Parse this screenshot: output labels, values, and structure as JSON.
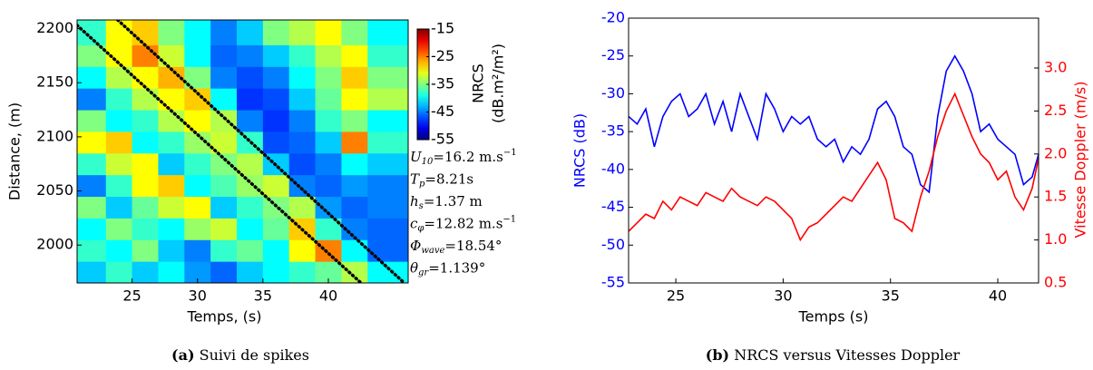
{
  "chart_data": [
    {
      "type": "heatmap",
      "xlabel": "Temps, (s)",
      "ylabel": "Distance, (m)",
      "xlim": [
        20.8,
        46.1
      ],
      "ylim": [
        1965,
        2208
      ],
      "xticks": [
        25,
        30,
        35,
        40
      ],
      "yticks": [
        2000,
        2050,
        2100,
        2150,
        2200
      ],
      "xbins": [
        20.8,
        23,
        25,
        27,
        29,
        31,
        33,
        35,
        37,
        39,
        41,
        43,
        46.1
      ],
      "ybins": [
        1965,
        1985,
        2005,
        2025,
        2045,
        2065,
        2085,
        2105,
        2125,
        2145,
        2165,
        2185,
        2208
      ],
      "z": [
        [
          -42,
          -38,
          -42,
          -40,
          -44,
          -46,
          -42,
          -40,
          -38,
          -36,
          -33,
          -40
        ],
        [
          -38,
          -40,
          -35,
          -42,
          -45,
          -38,
          -36,
          -40,
          -30,
          -25,
          -40,
          -46
        ],
        [
          -40,
          -35,
          -38,
          -40,
          -34,
          -32,
          -40,
          -36,
          -28,
          -38,
          -45,
          -46
        ],
        [
          -35,
          -42,
          -36,
          -32,
          -30,
          -42,
          -38,
          -35,
          -33,
          -44,
          -46,
          -45
        ],
        [
          -45,
          -38,
          -30,
          -28,
          -40,
          -37,
          -34,
          -32,
          -45,
          -46,
          -44,
          -45
        ],
        [
          -38,
          -32,
          -30,
          -42,
          -38,
          -35,
          -33,
          -42,
          -47,
          -45,
          -40,
          -42
        ],
        [
          -30,
          -28,
          -40,
          -38,
          -34,
          -32,
          -38,
          -47,
          -46,
          -42,
          -25,
          -38
        ],
        [
          -35,
          -40,
          -38,
          -33,
          -30,
          -33,
          -45,
          -48,
          -45,
          -38,
          -35,
          -40
        ],
        [
          -45,
          -38,
          -33,
          -30,
          -28,
          -40,
          -48,
          -47,
          -42,
          -36,
          -30,
          -33
        ],
        [
          -40,
          -33,
          -30,
          -27,
          -35,
          -45,
          -47,
          -45,
          -40,
          -35,
          -28,
          -35
        ],
        [
          -35,
          -30,
          -25,
          -32,
          -40,
          -46,
          -45,
          -42,
          -38,
          -33,
          -30,
          -38
        ],
        [
          -38,
          -30,
          -28,
          -35,
          -40,
          -45,
          -42,
          -35,
          -33,
          -30,
          -35,
          -40
        ]
      ],
      "cmap": "jet",
      "clim": [
        -55,
        -15
      ],
      "colorbar_ticks": [
        -15,
        -25,
        -35,
        -45,
        -55
      ],
      "colorbar_label": [
        "NRCS",
        "(dB.m²/m²)"
      ],
      "lines": [
        {
          "x": [
            20.8,
            42.5
          ],
          "y": [
            2203,
            1965
          ],
          "color": "#000000"
        },
        {
          "x": [
            23.9,
            45.8
          ],
          "y": [
            2208,
            1965
          ],
          "color": "#000000"
        }
      ],
      "annotations": [
        {
          "symbol": "U",
          "sub": "10",
          "text": "=16.2 m.s",
          "sup": "−1"
        },
        {
          "symbol": "T",
          "sub": "p",
          "text": "=8.21s"
        },
        {
          "symbol": "h",
          "sub": "s",
          "text": "=1.37 m"
        },
        {
          "symbol": "c",
          "sub": "φ",
          "text": "=12.82 m.s",
          "sup": "−1"
        },
        {
          "symbol": "Φ",
          "sub": "wave",
          "text": "=18.54°"
        },
        {
          "symbol": "θ",
          "sub": "gr",
          "text": "=1.139°"
        }
      ],
      "caption": {
        "label": "(a)",
        "text": "Suivi de spikes"
      }
    },
    {
      "type": "line",
      "xlabel": "Temps (s)",
      "ylabel": "NRCS (dB)",
      "y2label": "Vitesse Doppler (m/s)",
      "xlim": [
        22.8,
        41.9
      ],
      "ylim": [
        -55,
        -20
      ],
      "y2lim": [
        0.5,
        3.58
      ],
      "xticks": [
        25,
        30,
        35,
        40
      ],
      "yticks": [
        -55,
        -50,
        -45,
        -40,
        -35,
        -30,
        -25,
        -20
      ],
      "y2ticks": [
        {
          "value": 0.5,
          "label": "0.5"
        },
        {
          "value": 1,
          "label": "1.0"
        },
        {
          "value": 1.5,
          "label": "1.5"
        },
        {
          "value": 2,
          "label": "2.0"
        },
        {
          "value": 2.5,
          "label": "2.5"
        },
        {
          "value": 3,
          "label": "3.0"
        }
      ],
      "ycolor": "#0000ff",
      "y2color": "#ff0000",
      "x": [
        22.8,
        23.2,
        23.6,
        24,
        24.4,
        24.8,
        25.2,
        25.6,
        26,
        26.4,
        26.8,
        27.2,
        27.6,
        28,
        28.4,
        28.8,
        29.2,
        29.6,
        30,
        30.4,
        30.8,
        31.2,
        31.6,
        32,
        32.4,
        32.8,
        33.2,
        33.6,
        34,
        34.4,
        34.8,
        35.2,
        35.6,
        36,
        36.4,
        36.8,
        37.2,
        37.6,
        38,
        38.4,
        38.8,
        39.2,
        39.6,
        40,
        40.4,
        40.8,
        41.2,
        41.6,
        41.9
      ],
      "series": [
        {
          "color": "#0000ff",
          "values": [
            -33,
            -34,
            -32,
            -37,
            -33,
            -31,
            -30,
            -33,
            -32,
            -30,
            -34,
            -31,
            -35,
            -30,
            -33,
            -36,
            -30,
            -32,
            -35,
            -33,
            -34,
            -33,
            -36,
            -37,
            -36,
            -39,
            -37,
            -38,
            -36,
            -32,
            -31,
            -33,
            -37,
            -38,
            -42,
            -43,
            -33,
            -27,
            -25,
            -27,
            -30,
            -35,
            -34,
            -36,
            -37,
            -38,
            -42,
            -41,
            -38
          ]
        },
        {
          "color": "#ff0000",
          "axis": "y2",
          "values": [
            1.1,
            1.2,
            1.3,
            1.25,
            1.45,
            1.35,
            1.5,
            1.45,
            1.4,
            1.55,
            1.5,
            1.45,
            1.6,
            1.5,
            1.45,
            1.4,
            1.5,
            1.45,
            1.35,
            1.25,
            1.0,
            1.15,
            1.2,
            1.3,
            1.4,
            1.5,
            1.45,
            1.6,
            1.75,
            1.9,
            1.7,
            1.25,
            1.2,
            1.1,
            1.5,
            1.8,
            2.2,
            2.5,
            2.7,
            2.45,
            2.2,
            2.0,
            1.9,
            1.7,
            1.8,
            1.5,
            1.35,
            1.6,
            1.95
          ]
        }
      ],
      "caption": {
        "label": "(b)",
        "text": "NRCS versus Vitesses Doppler"
      }
    }
  ]
}
